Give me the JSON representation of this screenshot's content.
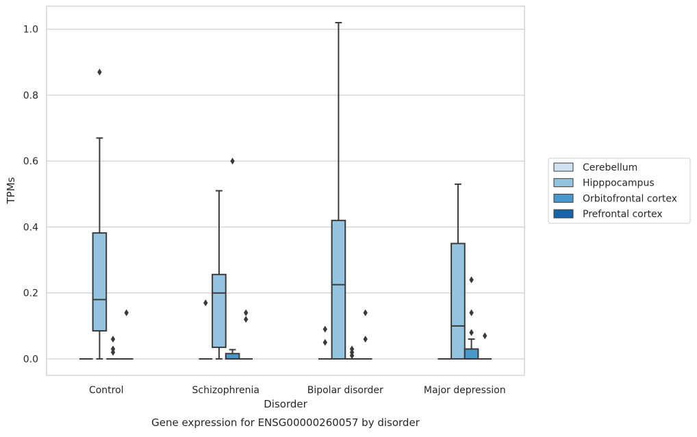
{
  "chart_data": {
    "type": "box",
    "title": "",
    "caption": "Gene expression for ENSG00000260057 by disorder",
    "xlabel": "Disorder",
    "ylabel": "TPMs",
    "ylim": [
      -0.05,
      1.07
    ],
    "yticks": [
      0.0,
      0.2,
      0.4,
      0.6,
      0.8,
      1.0
    ],
    "ytick_labels": [
      "0.0",
      "0.2",
      "0.4",
      "0.6",
      "0.8",
      "1.0"
    ],
    "grid": "horizontal",
    "legend_position": "right",
    "categories": [
      "Control",
      "Schizophrenia",
      "Bipolar disorder",
      "Major depression"
    ],
    "series": [
      {
        "name": "Cerebellum",
        "color": "#d0e1f2",
        "boxes": [
          {
            "whislo": 0,
            "q1": 0,
            "med": 0,
            "q3": 0,
            "whishi": 0,
            "fliers": []
          },
          {
            "whislo": 0,
            "q1": 0,
            "med": 0,
            "q3": 0,
            "whishi": 0,
            "fliers": [
              0.17
            ]
          },
          {
            "whislo": 0,
            "q1": 0,
            "med": 0,
            "q3": 0,
            "whishi": 0,
            "fliers": [
              0.05,
              0.09
            ]
          },
          {
            "whislo": 0,
            "q1": 0,
            "med": 0,
            "q3": 0,
            "whishi": 0,
            "fliers": []
          }
        ]
      },
      {
        "name": "Hipppocampus",
        "color": "#94c4df",
        "boxes": [
          {
            "whislo": 0,
            "q1": 0.085,
            "med": 0.18,
            "q3": 0.382,
            "whishi": 0.67,
            "fliers": [
              0.87
            ]
          },
          {
            "whislo": 0,
            "q1": 0.035,
            "med": 0.2,
            "q3": 0.256,
            "whishi": 0.51,
            "fliers": []
          },
          {
            "whislo": 0,
            "q1": 0,
            "med": 0.225,
            "q3": 0.42,
            "whishi": 1.02,
            "fliers": []
          },
          {
            "whislo": 0,
            "q1": 0,
            "med": 0.1,
            "q3": 0.35,
            "whishi": 0.53,
            "fliers": []
          }
        ]
      },
      {
        "name": "Orbitofrontal cortex",
        "color": "#4a98c9",
        "boxes": [
          {
            "whislo": 0,
            "q1": 0,
            "med": 0,
            "q3": 0,
            "whishi": 0,
            "fliers": [
              0.02,
              0.03,
              0.06
            ]
          },
          {
            "whislo": 0,
            "q1": 0,
            "med": 0,
            "q3": 0.016,
            "whishi": 0.028,
            "fliers": [
              0.6
            ]
          },
          {
            "whislo": 0,
            "q1": 0,
            "med": 0,
            "q3": 0,
            "whishi": 0,
            "fliers": [
              0.01,
              0.02,
              0.03
            ]
          },
          {
            "whislo": 0,
            "q1": 0,
            "med": 0,
            "q3": 0.03,
            "whishi": 0.06,
            "fliers": [
              0.08,
              0.14,
              0.24
            ]
          }
        ]
      },
      {
        "name": "Prefrontal cortex",
        "color": "#1764ab",
        "boxes": [
          {
            "whislo": 0,
            "q1": 0,
            "med": 0,
            "q3": 0,
            "whishi": 0,
            "fliers": [
              0.14
            ]
          },
          {
            "whislo": 0,
            "q1": 0,
            "med": 0,
            "q3": 0,
            "whishi": 0,
            "fliers": [
              0.12,
              0.14
            ]
          },
          {
            "whislo": 0,
            "q1": 0,
            "med": 0,
            "q3": 0,
            "whishi": 0,
            "fliers": [
              0.06,
              0.14
            ]
          },
          {
            "whislo": 0,
            "q1": 0,
            "med": 0,
            "q3": 0,
            "whishi": 0,
            "fliers": [
              0.07
            ]
          }
        ]
      }
    ]
  }
}
